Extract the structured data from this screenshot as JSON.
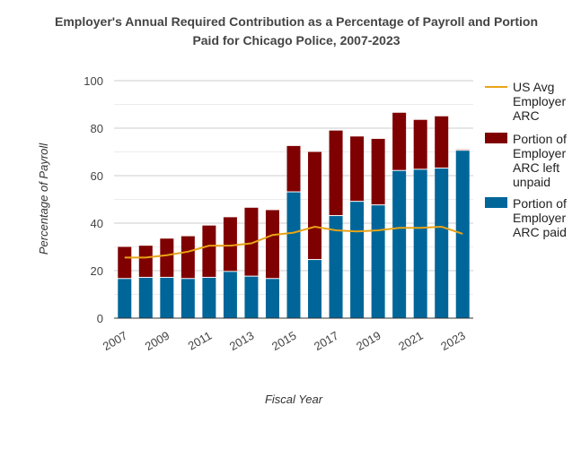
{
  "chart_data": {
    "type": "bar",
    "stacked": true,
    "title_line1": "Employer's Annual Required Contribution as a Percentage of Payroll and Portion",
    "title_line2": "Paid for Chicago Police, 2007-2023",
    "xlabel": "Fiscal Year",
    "ylabel": "Percentage of Payroll",
    "ylim": [
      0,
      100
    ],
    "yticks": [
      "0",
      "20",
      "40",
      "60",
      "80",
      "100"
    ],
    "categories": [
      "2007",
      "2008",
      "2009",
      "2010",
      "2011",
      "2012",
      "2013",
      "2014",
      "2015",
      "2016",
      "2017",
      "2018",
      "2019",
      "2020",
      "2021",
      "2022",
      "2023"
    ],
    "xtick_labels": [
      "2007",
      "2009",
      "2011",
      "2013",
      "2015",
      "2017",
      "2019",
      "2021",
      "2023"
    ],
    "series": [
      {
        "name": "Portion of Employer ARC paid",
        "legend_lines": [
          "Portion of",
          "Employer",
          "ARC paid"
        ],
        "color": "#006699",
        "values": [
          16.5,
          17,
          17,
          16.5,
          17,
          19.5,
          17.5,
          16.5,
          53,
          24.5,
          43,
          49,
          47.5,
          62,
          62.5,
          63,
          70.5
        ]
      },
      {
        "name": "Portion of Employer ARC left unpaid",
        "legend_lines": [
          "Portion of",
          "Employer",
          "ARC left",
          "unpaid"
        ],
        "color": "#7f0000",
        "values": [
          13.5,
          13.5,
          16.5,
          18,
          22,
          23,
          29,
          29,
          19.5,
          45.5,
          36,
          27.5,
          28,
          24.5,
          21,
          22,
          0.5
        ]
      },
      {
        "name": "US Avg Employer ARC",
        "legend_lines": [
          "US Avg",
          "Employer",
          "ARC"
        ],
        "color": "#e8a317",
        "type": "line",
        "values": [
          25.5,
          25.5,
          26.5,
          28,
          30.5,
          30.5,
          31.5,
          35,
          36,
          38.5,
          37,
          36.5,
          37,
          38,
          38,
          38.5,
          35.5
        ]
      }
    ]
  }
}
